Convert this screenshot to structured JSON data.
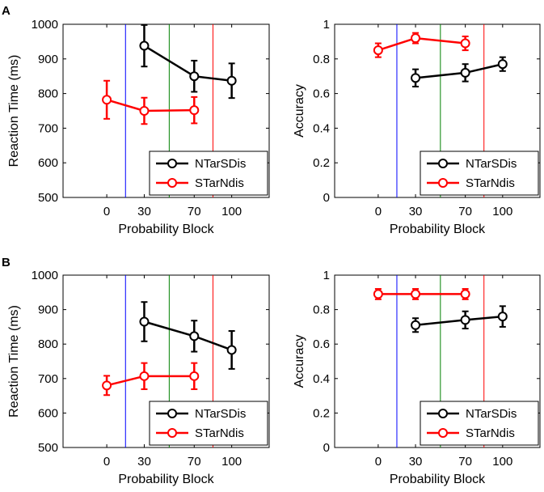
{
  "chart_data": [
    {
      "panel": "A",
      "type": "line",
      "xlabel": "Probability Block",
      "ylabel": "Reaction Time (ms)",
      "ylim": [
        500,
        1000
      ],
      "yticks": [
        500,
        600,
        700,
        800,
        900,
        1000
      ],
      "xlim": [
        -35,
        130
      ],
      "xticks": [
        0,
        30,
        70,
        100
      ],
      "vlines": [
        {
          "x": 15,
          "color": "#0000ff"
        },
        {
          "x": 50,
          "color": "#008000"
        },
        {
          "x": 85,
          "color": "#ff0000"
        }
      ],
      "series": [
        {
          "name": "NTarSDis",
          "color": "#000000",
          "x": [
            30,
            70,
            100
          ],
          "values": [
            938,
            850,
            837
          ],
          "err": [
            60,
            45,
            50
          ]
        },
        {
          "name": "STarNdis",
          "color": "#ff0000",
          "x": [
            0,
            30,
            70
          ],
          "values": [
            782,
            750,
            752
          ],
          "err": [
            55,
            38,
            38
          ]
        }
      ],
      "legend": [
        "NTarSDis",
        "STarNdis"
      ],
      "legend_loc": "bottom-right"
    },
    {
      "panel": "",
      "type": "line",
      "xlabel": "Probability Block",
      "ylabel": "Accuracy",
      "ylim": [
        0,
        1
      ],
      "yticks": [
        0,
        0.2,
        0.4,
        0.6,
        0.8,
        1
      ],
      "xlim": [
        -35,
        130
      ],
      "xticks": [
        0,
        30,
        70,
        100
      ],
      "vlines": [
        {
          "x": 15,
          "color": "#0000ff"
        },
        {
          "x": 50,
          "color": "#008000"
        },
        {
          "x": 85,
          "color": "#ff0000"
        }
      ],
      "series": [
        {
          "name": "NTarSDis",
          "color": "#000000",
          "x": [
            30,
            70,
            100
          ],
          "values": [
            0.69,
            0.72,
            0.77
          ],
          "err": [
            0.05,
            0.05,
            0.04
          ]
        },
        {
          "name": "STarNdis",
          "color": "#ff0000",
          "x": [
            0,
            30,
            70
          ],
          "values": [
            0.85,
            0.92,
            0.89
          ],
          "err": [
            0.04,
            0.03,
            0.04
          ]
        }
      ],
      "legend": [
        "NTarSDis",
        "STarNdis"
      ],
      "legend_loc": "bottom-right"
    },
    {
      "panel": "B",
      "type": "line",
      "xlabel": "Probability Block",
      "ylabel": "Reaction Time (ms)",
      "ylim": [
        500,
        1000
      ],
      "yticks": [
        500,
        600,
        700,
        800,
        900,
        1000
      ],
      "xlim": [
        -35,
        130
      ],
      "xticks": [
        0,
        30,
        70,
        100
      ],
      "vlines": [
        {
          "x": 15,
          "color": "#0000ff"
        },
        {
          "x": 50,
          "color": "#008000"
        },
        {
          "x": 85,
          "color": "#ff0000"
        }
      ],
      "series": [
        {
          "name": "NTarSDis",
          "color": "#000000",
          "x": [
            30,
            70,
            100
          ],
          "values": [
            865,
            823,
            783
          ],
          "err": [
            57,
            45,
            55
          ]
        },
        {
          "name": "STarNdis",
          "color": "#ff0000",
          "x": [
            0,
            30,
            70
          ],
          "values": [
            680,
            707,
            707
          ],
          "err": [
            28,
            38,
            38
          ]
        }
      ],
      "legend": [
        "NTarSDis",
        "STarNdis"
      ],
      "legend_loc": "bottom-right"
    },
    {
      "panel": "",
      "type": "line",
      "xlabel": "Probability Block",
      "ylabel": "Accuracy",
      "ylim": [
        0,
        1
      ],
      "yticks": [
        0,
        0.2,
        0.4,
        0.6,
        0.8,
        1
      ],
      "xlim": [
        -35,
        130
      ],
      "xticks": [
        0,
        30,
        70,
        100
      ],
      "vlines": [
        {
          "x": 15,
          "color": "#0000ff"
        },
        {
          "x": 50,
          "color": "#008000"
        },
        {
          "x": 85,
          "color": "#ff0000"
        }
      ],
      "series": [
        {
          "name": "NTarSDis",
          "color": "#000000",
          "x": [
            30,
            70,
            100
          ],
          "values": [
            0.71,
            0.74,
            0.76
          ],
          "err": [
            0.04,
            0.05,
            0.06
          ]
        },
        {
          "name": "STarNdis",
          "color": "#ff0000",
          "x": [
            0,
            30,
            70
          ],
          "values": [
            0.89,
            0.89,
            0.89
          ],
          "err": [
            0.03,
            0.03,
            0.03
          ]
        }
      ],
      "legend": [
        "NTarSDis",
        "STarNdis"
      ],
      "legend_loc": "bottom-right"
    }
  ]
}
